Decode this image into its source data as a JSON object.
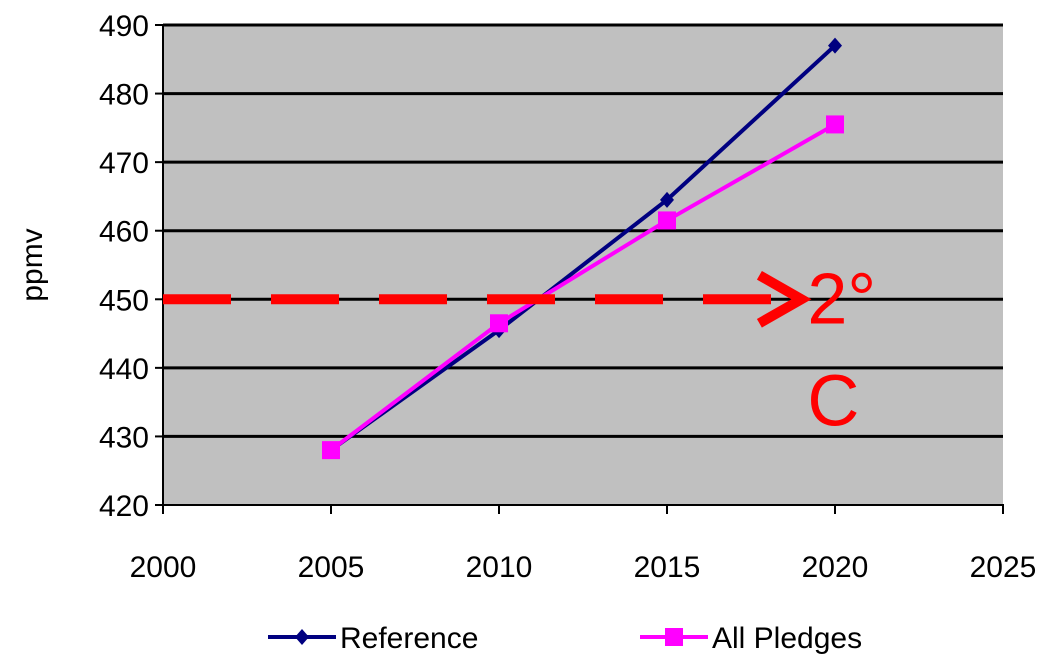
{
  "chart_data": {
    "type": "line",
    "ylabel": "ppmv",
    "xlim": [
      2000,
      2025
    ],
    "ylim": [
      420,
      490
    ],
    "x_ticks": [
      2000,
      2005,
      2010,
      2015,
      2020,
      2025
    ],
    "y_ticks": [
      420,
      430,
      440,
      450,
      460,
      470,
      480,
      490
    ],
    "grid": true,
    "legend_placement": "bottom",
    "series": [
      {
        "name": "Reference",
        "color": "#000080",
        "marker": "diamond",
        "x": [
          2005,
          2010,
          2015,
          2020
        ],
        "y": [
          428,
          445.5,
          464.5,
          487
        ]
      },
      {
        "name": "All Pledges",
        "color": "#FF00FF",
        "marker": "square",
        "x": [
          2005,
          2010,
          2015,
          2020
        ],
        "y": [
          428,
          446.5,
          461.5,
          475.5
        ]
      }
    ],
    "threshold": {
      "y": 450,
      "x_from": 2000,
      "x_to": 2019,
      "color": "#FF0000",
      "label_line1": "2°",
      "label_line2": "C"
    }
  }
}
